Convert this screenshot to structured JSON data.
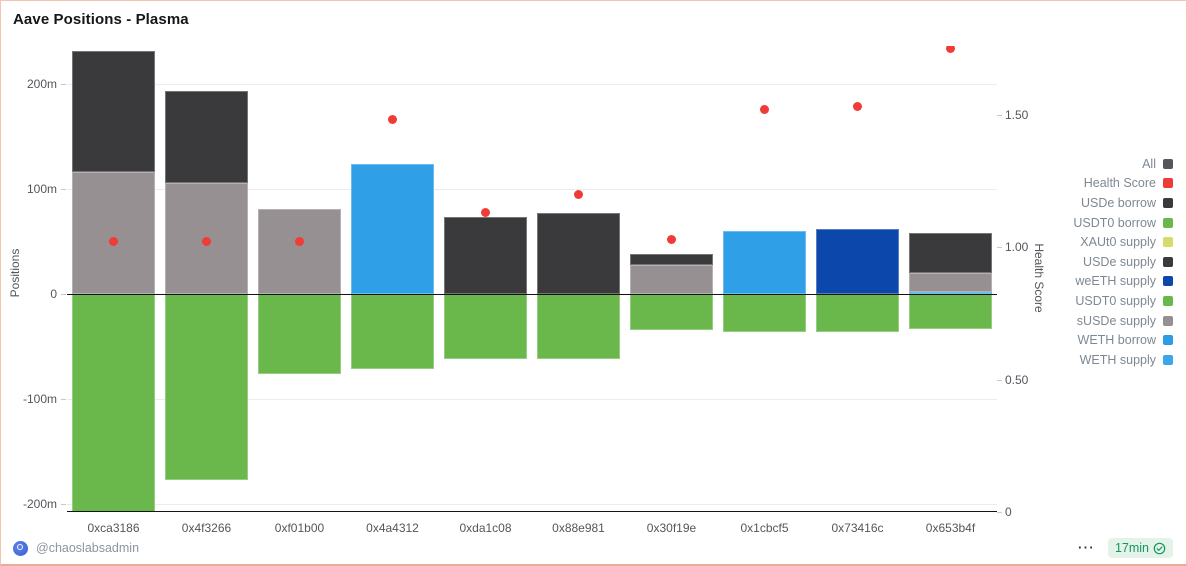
{
  "panel": {
    "title": "Aave Positions - Plasma"
  },
  "footer": {
    "author": "@chaoslabsadmin",
    "more_icon": "⋯",
    "refresh_badge": "17min"
  },
  "colors": {
    "panel_border": "#f4c6b0",
    "health_score_red": "#f13b36",
    "badge_green": "#13975c",
    "legend_text": "#7e8893"
  },
  "legend": {
    "position": "right",
    "items": [
      {
        "label": "All",
        "color": "#55575c"
      },
      {
        "label": "Health Score",
        "color": "#ef3b38"
      },
      {
        "label": "USDe borrow",
        "color": "#3a3a3d"
      },
      {
        "label": "USDT0 borrow",
        "color": "#6ab84c"
      },
      {
        "label": "XAUt0 supply",
        "color": "#d6dc6a"
      },
      {
        "label": "USDe supply",
        "color": "#3a3a3d"
      },
      {
        "label": "weETH supply",
        "color": "#0c47ab"
      },
      {
        "label": "USDT0 supply",
        "color": "#6ab84c"
      },
      {
        "label": "sUSDe supply",
        "color": "#969093"
      },
      {
        "label": "WETH borrow",
        "color": "#2e9be6"
      },
      {
        "label": "WETH supply",
        "color": "#3aa7ec"
      }
    ]
  },
  "chart_data": {
    "type": "bar",
    "title": "Aave Positions - Plasma",
    "categories": [
      "0xca3186",
      "0x4f3266",
      "0xf01b00",
      "0x4a4312",
      "0xda1c08",
      "0x88e981",
      "0x30f19e",
      "0x1cbcf5",
      "0x73416c",
      "0x653b4f"
    ],
    "units": "millions (m)",
    "grid": true,
    "legend_position": "right",
    "y_left": {
      "label": "Positions",
      "range": [
        -210,
        235
      ],
      "ticks": [
        {
          "label": "200m",
          "value": 200
        },
        {
          "label": "100m",
          "value": 100
        },
        {
          "label": "0",
          "value": 0
        },
        {
          "label": "-100m",
          "value": -100
        },
        {
          "label": "-200m",
          "value": -200
        }
      ]
    },
    "y_right": {
      "label": "Health Score",
      "range": [
        0,
        1.76
      ],
      "ticks": [
        {
          "label": "1.50",
          "value": 1.5
        },
        {
          "label": "1.00",
          "value": 1.0
        },
        {
          "label": "0.50",
          "value": 0.5
        },
        {
          "label": "0",
          "value": 0
        }
      ]
    },
    "stack_order_positive": [
      "WETH supply",
      "sUSDe supply",
      "USDe supply",
      "weETH supply"
    ],
    "stack_order_negative": [
      "USDT0 borrow"
    ],
    "series": [
      {
        "name": "sUSDe supply",
        "type": "bar",
        "color": "#969093",
        "values": [
          116,
          106,
          81,
          0,
          0,
          0,
          28,
          0,
          0,
          18
        ]
      },
      {
        "name": "USDe supply",
        "type": "bar",
        "color": "#3a3a3d",
        "values": [
          115,
          87,
          0,
          0,
          73,
          77,
          10,
          0,
          0,
          38
        ]
      },
      {
        "name": "WETH supply",
        "type": "bar",
        "color": "#2f9fe8",
        "values": [
          0,
          0,
          0,
          124,
          0,
          0,
          0,
          60,
          0,
          2
        ]
      },
      {
        "name": "weETH supply",
        "type": "bar",
        "color": "#0c47ab",
        "values": [
          0,
          0,
          0,
          0,
          0,
          0,
          0,
          0,
          62,
          0
        ]
      },
      {
        "name": "USDT0 borrow",
        "type": "bar",
        "color": "#6ab84c",
        "values": [
          -208,
          -177,
          -76,
          -71,
          -62,
          -62,
          -34,
          -36,
          -36,
          -33
        ]
      },
      {
        "name": "Health Score",
        "type": "scatter",
        "color": "#f13b36",
        "values": [
          1.02,
          1.02,
          1.02,
          1.48,
          1.13,
          1.2,
          1.03,
          1.52,
          1.53,
          1.75
        ]
      }
    ]
  }
}
